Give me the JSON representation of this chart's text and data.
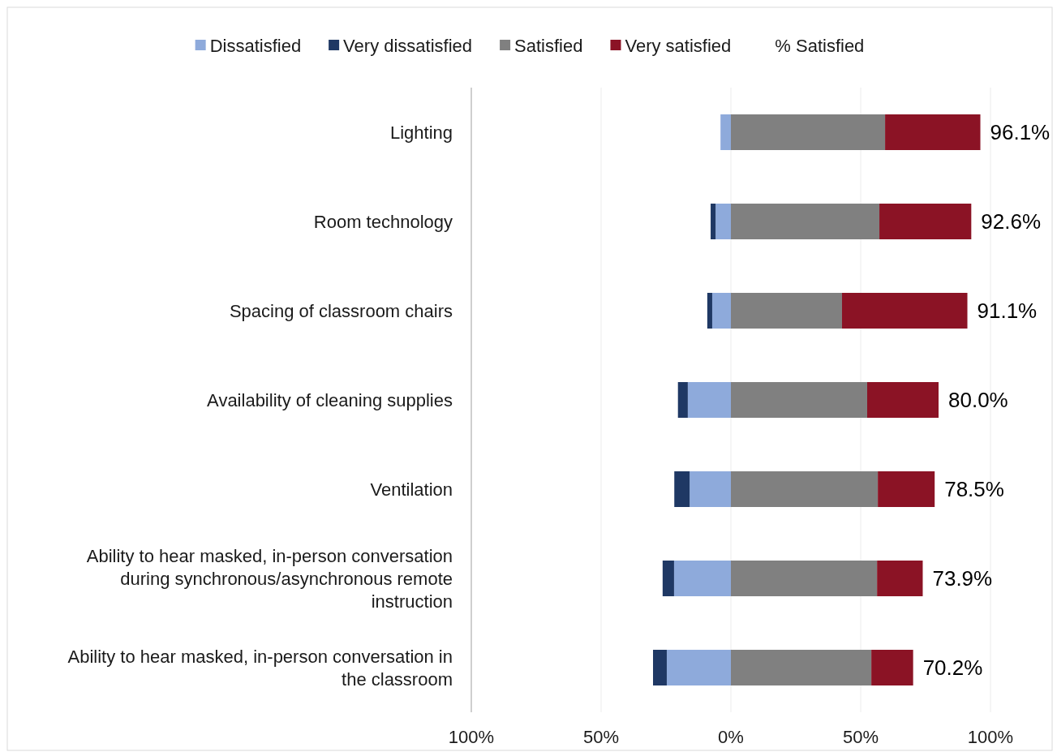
{
  "chart_data": {
    "type": "bar",
    "orientation": "horizontal",
    "stacked": true,
    "categories": [
      "Lighting",
      "Room technology",
      "Spacing of classroom chairs",
      "Availability of cleaning supplies",
      "Ventilation",
      "Ability to hear masked, in-person conversation during synchronous/asynchronous remote instruction",
      "Ability to hear masked, in-person conversation in the classroom"
    ],
    "series": [
      {
        "name": "Dissatisfied",
        "color": "#8eaadb",
        "values": [
          -4,
          -5.9,
          -7.2,
          -16.6,
          -15.9,
          -21.9,
          -24.7
        ]
      },
      {
        "name": "Very dissatisfied",
        "color": "#1f3864",
        "values": [
          0,
          -1.9,
          -1.9,
          -3.8,
          -5.9,
          -4.4,
          -5.3
        ]
      },
      {
        "name": "Satisfied",
        "color": "#808080",
        "values": [
          59.4,
          57.2,
          42.8,
          52.5,
          56.6,
          56.3,
          54.1
        ]
      },
      {
        "name": "Very satisfied",
        "color": "#8b1325",
        "values": [
          36.7,
          35.4,
          48.3,
          27.5,
          21.9,
          17.6,
          16.1
        ]
      }
    ],
    "legend_title": "% Satisfied",
    "annotations": [
      {
        "text": "96.1%",
        "x": 96.1,
        "y": "Lighting"
      },
      {
        "text": "92.6%",
        "x": 92.6,
        "y": "Room technology"
      },
      {
        "text": "91.1%",
        "x": 91.1,
        "y": "Spacing of classroom chairs"
      },
      {
        "text": "80.0%",
        "x": 80.0,
        "y": "Availability of cleaning supplies"
      },
      {
        "text": "78.5%",
        "x": 78.5,
        "y": "Ventilation"
      },
      {
        "text": "73.9%",
        "x": 73.9,
        "y": "Ability to hear masked, in-person conversation during synchronous/asynchronous remote instruction"
      },
      {
        "text": "70.2%",
        "x": 70.2,
        "y": "Ability to hear masked, in-person conversation in the classroom"
      }
    ],
    "xlim": [
      -100,
      100
    ],
    "xticks": [
      {
        "value": -100,
        "label": "100%"
      },
      {
        "value": -50,
        "label": "50%"
      },
      {
        "value": 0,
        "label": "0%"
      },
      {
        "value": 50,
        "label": "50%"
      },
      {
        "value": 100,
        "label": "100%"
      }
    ],
    "grid": "x",
    "legend": "top"
  }
}
